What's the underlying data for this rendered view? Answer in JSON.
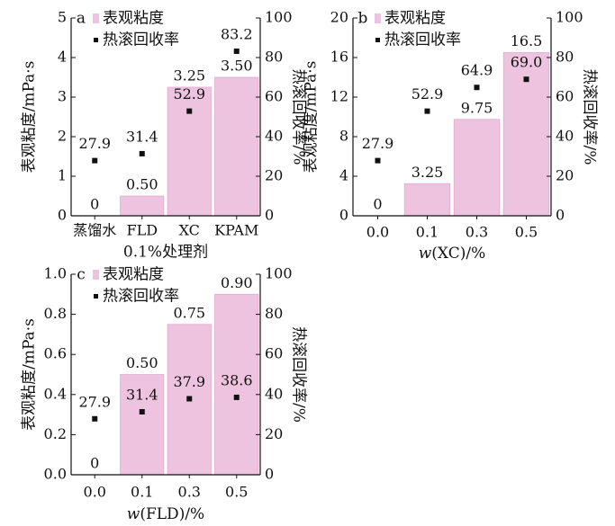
{
  "colors": {
    "bar": "#eec3e0",
    "bar_edge": "#e3a9cd",
    "marker": "#111111",
    "axis": "#111111"
  },
  "chart_data": [
    {
      "type": "bar",
      "panel_label": "a",
      "categories": [
        "蒸馏水",
        "FLD",
        "XC",
        "KPAM"
      ],
      "series": [
        {
          "name": "表观粘度",
          "axis": "left",
          "kind": "bar",
          "values": [
            0,
            0.5,
            3.25,
            3.5
          ],
          "labels": [
            "0",
            "0.50",
            "3.25",
            "3.50"
          ]
        },
        {
          "name": "热滚回收率",
          "axis": "right",
          "kind": "scatter",
          "values": [
            27.9,
            31.4,
            52.9,
            83.2
          ],
          "labels": [
            "27.9",
            "31.4",
            "52.9",
            "83.2"
          ]
        }
      ],
      "xlabel": "0.1%处理剂",
      "ylabel_left": "表观粘度/mPa·s",
      "ylabel_right": "热滚回收率/%",
      "ylim_left": [
        0,
        5
      ],
      "ylim_right": [
        0,
        100
      ],
      "yticks_left": [
        "0",
        "1",
        "2",
        "3",
        "4",
        "5"
      ],
      "yticks_right": [
        "0",
        "20",
        "40",
        "60",
        "80",
        "100"
      ],
      "legend_position": "top"
    },
    {
      "type": "bar",
      "panel_label": "b",
      "categories": [
        "0.0",
        "0.1",
        "0.3",
        "0.5"
      ],
      "series": [
        {
          "name": "表观粘度",
          "axis": "left",
          "kind": "bar",
          "values": [
            0,
            3.25,
            9.75,
            16.5
          ],
          "labels": [
            "0",
            "3.25",
            "9.75",
            "16.5"
          ]
        },
        {
          "name": "热滚回收率",
          "axis": "right",
          "kind": "scatter",
          "values": [
            27.9,
            52.9,
            64.9,
            69.0
          ],
          "labels": [
            "27.9",
            "52.9",
            "64.9",
            "69.0"
          ]
        }
      ],
      "xlabel_var": "w",
      "xlabel_rest": "(XC)/%",
      "ylabel_left": "表观粘度/mPa·s",
      "ylabel_right": "热滚回收率/%",
      "ylim_left": [
        0,
        20
      ],
      "ylim_right": [
        0,
        100
      ],
      "yticks_left": [
        "0",
        "4",
        "8",
        "12",
        "16",
        "20"
      ],
      "yticks_right": [
        "0",
        "20",
        "40",
        "60",
        "80",
        "100"
      ],
      "legend_position": "top"
    },
    {
      "type": "bar",
      "panel_label": "c",
      "categories": [
        "0.0",
        "0.1",
        "0.3",
        "0.5"
      ],
      "series": [
        {
          "name": "表观粘度",
          "axis": "left",
          "kind": "bar",
          "values": [
            0,
            0.5,
            0.75,
            0.9
          ],
          "labels": [
            "0",
            "0.50",
            "0.75",
            "0.90"
          ]
        },
        {
          "name": "热滚回收率",
          "axis": "right",
          "kind": "scatter",
          "values": [
            27.9,
            31.4,
            37.9,
            38.6
          ],
          "labels": [
            "27.9",
            "31.4",
            "37.9",
            "38.6"
          ]
        }
      ],
      "xlabel_var": "w",
      "xlabel_rest": "(FLD)/%",
      "ylabel_left": "表观粘度/mPa·s",
      "ylabel_right": "热滚回收率/%",
      "ylim_left": [
        0,
        1.0
      ],
      "ylim_right": [
        0,
        100
      ],
      "yticks_left": [
        "0.0",
        "0.2",
        "0.4",
        "0.6",
        "0.8",
        "1.0"
      ],
      "yticks_right": [
        "0",
        "20",
        "40",
        "60",
        "80",
        "100"
      ],
      "legend_position": "top"
    }
  ]
}
